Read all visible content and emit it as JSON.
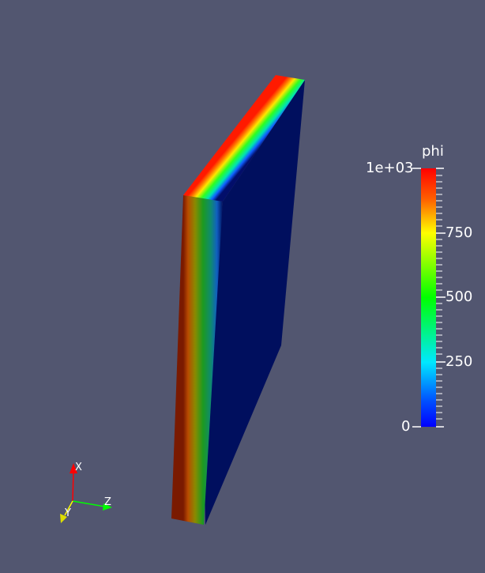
{
  "scene": {
    "background_color": "#525670",
    "object": "slab",
    "colormap": "rainbow (blue-to-red)"
  },
  "scalar_bar": {
    "title": "phi",
    "range": [
      0,
      1000
    ],
    "ticks": [
      {
        "label": "1e+03",
        "value": 1000
      },
      {
        "label": "750",
        "value": 750
      },
      {
        "label": "500",
        "value": 500
      },
      {
        "label": "250",
        "value": 250
      },
      {
        "label": "0",
        "value": 0
      }
    ]
  },
  "orientation_axes": {
    "x_label": "X",
    "y_label": "Y",
    "z_label": "Z",
    "x_color": "#ff0000",
    "y_color": "#ffff00",
    "z_color": "#00ff00"
  }
}
